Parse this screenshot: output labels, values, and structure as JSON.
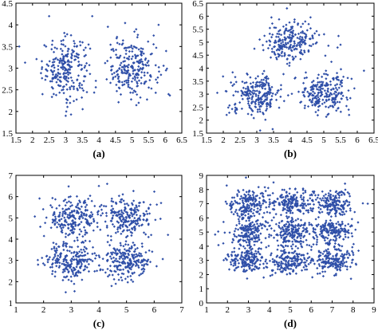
{
  "chart_data": [
    {
      "type": "scatter",
      "caption": "(a)",
      "xlim": [
        1.5,
        6.5
      ],
      "ylim": [
        1.5,
        4.5
      ],
      "xticks": [
        "1.5",
        "2",
        "2.5",
        "3",
        "3.5",
        "4",
        "4.5",
        "5",
        "5.5",
        "6",
        "6.5"
      ],
      "yticks": [
        "1.5",
        "2",
        "2.5",
        "3",
        "3.5",
        "4",
        "4.5"
      ],
      "marker_color": "#2f4fa8",
      "clusters": [
        {
          "center": [
            3.0,
            3.0
          ],
          "spread": [
            0.35,
            0.35
          ],
          "count": 240
        },
        {
          "center": [
            5.0,
            3.0
          ],
          "spread": [
            0.38,
            0.35
          ],
          "count": 240
        }
      ],
      "sample_points": [
        [
          2.5,
          4.2
        ],
        [
          3.8,
          4.2
        ],
        [
          1.6,
          3.5
        ],
        [
          6.1,
          2.4
        ],
        [
          3.0,
          1.9
        ],
        [
          5.2,
          2.2
        ],
        [
          2.3,
          2.4
        ],
        [
          5.8,
          4.0
        ]
      ]
    },
    {
      "type": "scatter",
      "caption": "(b)",
      "xlim": [
        1.5,
        6.5
      ],
      "ylim": [
        1.5,
        6.5
      ],
      "xticks": [
        "1.5",
        "2",
        "2.5",
        "3",
        "3.5",
        "4",
        "4.5",
        "5",
        "5.5",
        "6",
        "6.5"
      ],
      "yticks": [
        "1.5",
        "2",
        "2.5",
        "3",
        "3.5",
        "4",
        "4.5",
        "5",
        "5.5",
        "6",
        "6.5"
      ],
      "marker_color": "#2f4fa8",
      "clusters": [
        {
          "center": [
            3.0,
            3.0
          ],
          "spread": [
            0.38,
            0.38
          ],
          "count": 230
        },
        {
          "center": [
            5.0,
            3.0
          ],
          "spread": [
            0.38,
            0.38
          ],
          "count": 230
        },
        {
          "center": [
            4.0,
            5.0
          ],
          "spread": [
            0.38,
            0.38
          ],
          "count": 230
        }
      ],
      "sample_points": [
        [
          3.9,
          6.3
        ],
        [
          3.1,
          1.6
        ],
        [
          6.2,
          3.9
        ],
        [
          2.1,
          2.2
        ],
        [
          5.5,
          4.9
        ]
      ]
    },
    {
      "type": "scatter",
      "caption": "(c)",
      "xlim": [
        1,
        7
      ],
      "ylim": [
        1,
        7
      ],
      "xticks": [
        "1",
        "2",
        "3",
        "4",
        "5",
        "6",
        "7"
      ],
      "yticks": [
        "1",
        "2",
        "3",
        "4",
        "5",
        "6",
        "7"
      ],
      "marker_color": "#2f4fa8",
      "clusters": [
        {
          "center": [
            3.0,
            3.0
          ],
          "spread": [
            0.45,
            0.45
          ],
          "count": 220
        },
        {
          "center": [
            5.0,
            3.0
          ],
          "spread": [
            0.45,
            0.45
          ],
          "count": 220
        },
        {
          "center": [
            3.0,
            5.0
          ],
          "spread": [
            0.45,
            0.45
          ],
          "count": 220
        },
        {
          "center": [
            5.0,
            5.0
          ],
          "spread": [
            0.45,
            0.45
          ],
          "count": 220
        }
      ],
      "sample_points": [
        [
          4.0,
          6.5
        ],
        [
          4.3,
          6.6
        ],
        [
          6.5,
          4.2
        ],
        [
          1.8,
          2.8
        ],
        [
          2.8,
          1.5
        ]
      ]
    },
    {
      "type": "scatter",
      "caption": "(d)",
      "xlim": [
        1,
        9
      ],
      "ylim": [
        0,
        9
      ],
      "xticks": [
        "1",
        "2",
        "3",
        "4",
        "5",
        "6",
        "7",
        "8",
        "9"
      ],
      "yticks": [
        "0",
        "1",
        "2",
        "3",
        "4",
        "5",
        "6",
        "7",
        "8",
        "9"
      ],
      "marker_color": "#2f4fa8",
      "clusters": [
        {
          "center": [
            3.0,
            3.0
          ],
          "spread": [
            0.5,
            0.5
          ],
          "count": 180
        },
        {
          "center": [
            5.0,
            3.0
          ],
          "spread": [
            0.5,
            0.5
          ],
          "count": 180
        },
        {
          "center": [
            7.0,
            3.0
          ],
          "spread": [
            0.5,
            0.5
          ],
          "count": 180
        },
        {
          "center": [
            3.0,
            5.0
          ],
          "spread": [
            0.5,
            0.5
          ],
          "count": 180
        },
        {
          "center": [
            5.0,
            5.0
          ],
          "spread": [
            0.5,
            0.5
          ],
          "count": 180
        },
        {
          "center": [
            7.0,
            5.0
          ],
          "spread": [
            0.5,
            0.5
          ],
          "count": 180
        },
        {
          "center": [
            3.0,
            7.0
          ],
          "spread": [
            0.5,
            0.5
          ],
          "count": 180
        },
        {
          "center": [
            5.0,
            7.0
          ],
          "spread": [
            0.5,
            0.5
          ],
          "count": 180
        },
        {
          "center": [
            7.0,
            7.0
          ],
          "spread": [
            0.5,
            0.5
          ],
          "count": 180
        }
      ],
      "sample_points": [
        [
          8.7,
          7.0
        ],
        [
          1.8,
          4.2
        ],
        [
          4.2,
          8.5
        ],
        [
          7.9,
          1.7
        ]
      ]
    }
  ]
}
